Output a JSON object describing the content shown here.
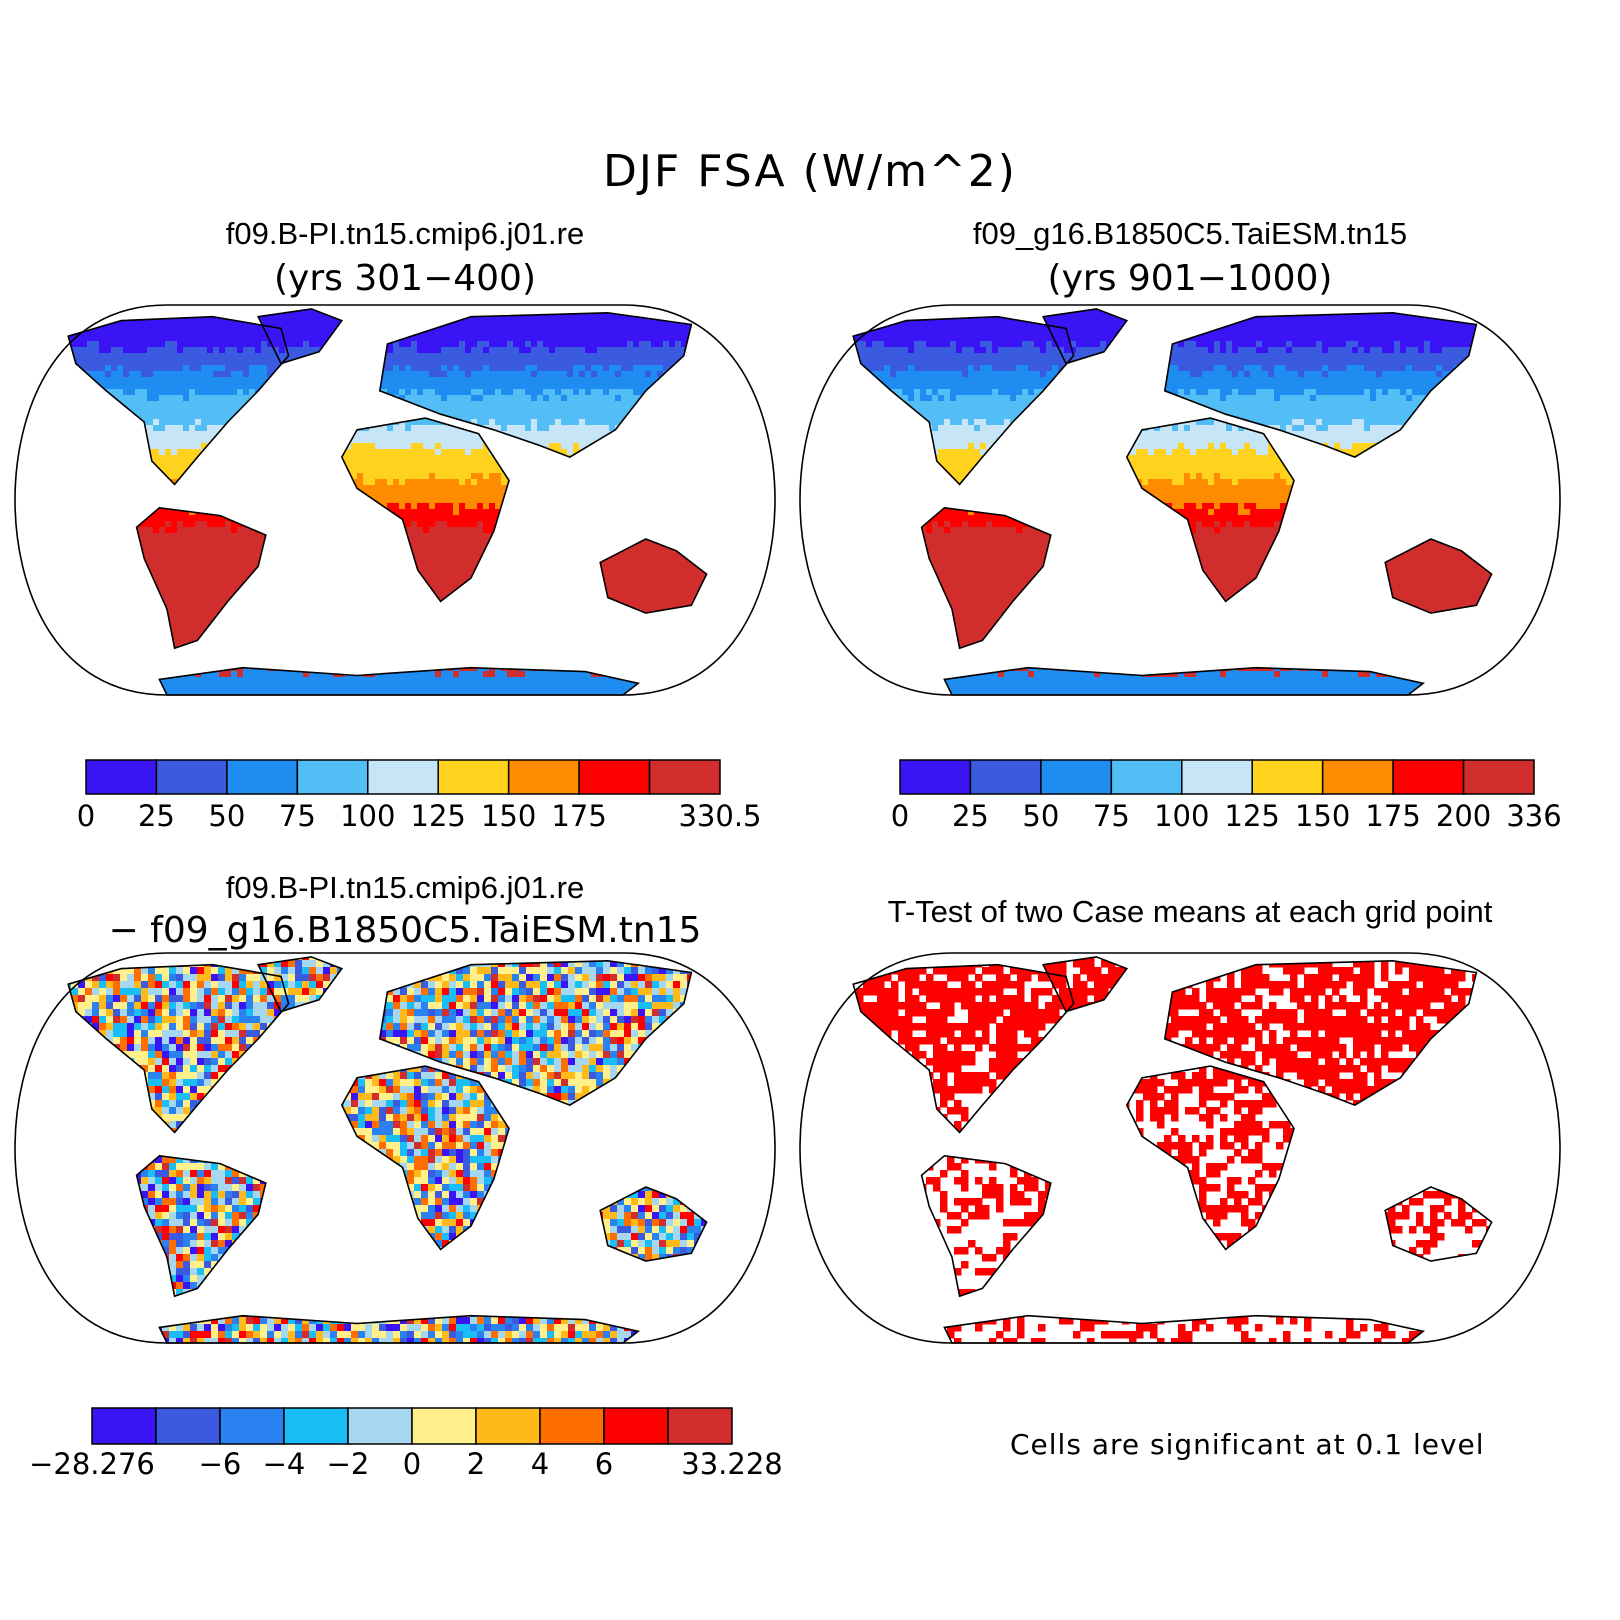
{
  "title": "DJF FSA (W/m^2)",
  "panels": [
    {
      "id": "case1",
      "title": "f09.B-PI.tn15.cmip6.j01.re",
      "subtitle": "(yrs 301−400)",
      "colorbar": {
        "colors": [
          "#3a14f5",
          "#3a5ae0",
          "#1e8cf0",
          "#52bef5",
          "#c6e6f8",
          "#ffd21e",
          "#ff8c00",
          "#ff0000",
          "#d22d2d"
        ],
        "labels": [
          "0",
          "25",
          "50",
          "75",
          "100",
          "125",
          "150",
          "175",
          "",
          "330.5"
        ]
      }
    },
    {
      "id": "case2",
      "title": "f09_g16.B1850C5.TaiESM.tn15",
      "subtitle": "(yrs 901−1000)",
      "colorbar": {
        "colors": [
          "#3a14f5",
          "#3a5ae0",
          "#1e8cf0",
          "#52bef5",
          "#c6e6f8",
          "#ffd21e",
          "#ff8c00",
          "#ff0000",
          "#d22d2d"
        ],
        "labels": [
          "0",
          "25",
          "50",
          "75",
          "100",
          "125",
          "150",
          "175",
          "200",
          "336"
        ]
      }
    },
    {
      "id": "diff",
      "title": "f09.B-PI.tn15.cmip6.j01.re",
      "subtitle": "− f09_g16.B1850C5.TaiESM.tn15",
      "colorbar": {
        "colors": [
          "#3a14f5",
          "#3a5ae0",
          "#2a82f0",
          "#18bef5",
          "#a5d7f0",
          "#fff08c",
          "#ffb919",
          "#ff6e00",
          "#ff0000",
          "#d22d2d"
        ],
        "labels": [
          "−28.276",
          "",
          "−6",
          "−4",
          "−2",
          "0",
          "2",
          "4",
          "6",
          "",
          "33.228"
        ]
      }
    },
    {
      "id": "ttest",
      "title": "T-Test of two Case means at each grid point",
      "note": "Cells are significant at 0.1 level"
    }
  ]
}
